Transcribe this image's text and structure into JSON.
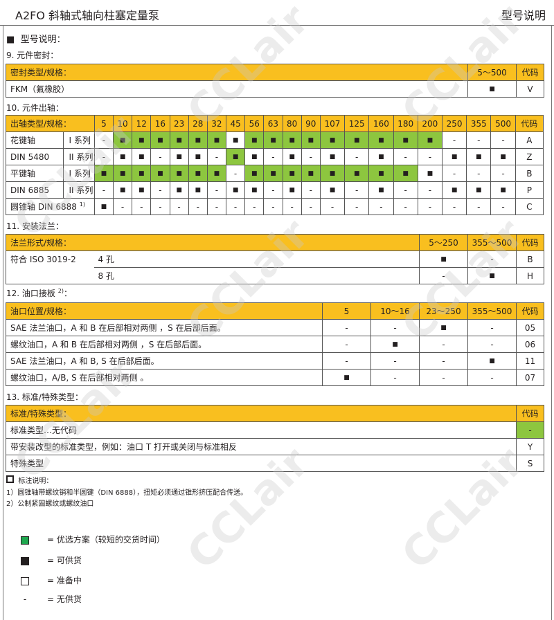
{
  "header": {
    "title": "A2FO 斜轴式轴向柱塞定量泵",
    "right": "型号说明"
  },
  "heading": "型号说明：",
  "s9": {
    "title": "9.  元件密封：",
    "cols": [
      "密封类型/规格：",
      "5～500",
      "代码"
    ],
    "rows": [
      [
        "FKM（氟橡胶）",
        "■",
        "V"
      ]
    ]
  },
  "s10": {
    "title": "10. 元件出轴：",
    "label": "出轴类型/规格：",
    "code_label": "代码",
    "sizes": [
      "5",
      "10",
      "12",
      "16",
      "23",
      "28",
      "32",
      "45",
      "56",
      "63",
      "80",
      "90",
      "107",
      "125",
      "160",
      "180",
      "200",
      "250",
      "355",
      "500"
    ],
    "rows": [
      {
        "type": "花键轴",
        "series": "I 系列",
        "code": "A",
        "values": [
          "-",
          "■",
          "■",
          "■",
          "■",
          "■",
          "■",
          "■",
          "■",
          "■",
          "■",
          "■",
          "■",
          "■",
          "■",
          "■",
          "■",
          "-",
          "-",
          "-"
        ],
        "preferred": [
          0,
          1,
          1,
          1,
          1,
          1,
          1,
          0,
          1,
          1,
          1,
          1,
          1,
          1,
          1,
          1,
          1,
          0,
          0,
          0
        ]
      },
      {
        "type": "DIN 5480",
        "series": "II 系列",
        "code": "Z",
        "values": [
          "-",
          "■",
          "■",
          "-",
          "■",
          "■",
          "-",
          "■",
          "■",
          "-",
          "■",
          "-",
          "■",
          "-",
          "■",
          "-",
          "-",
          "■",
          "■",
          "■"
        ],
        "preferred": [
          0,
          0,
          0,
          0,
          0,
          0,
          0,
          1,
          0,
          0,
          0,
          0,
          0,
          0,
          0,
          0,
          0,
          0,
          0,
          0
        ]
      },
      {
        "type": "平键轴",
        "series": "I 系列",
        "code": "B",
        "values": [
          "■",
          "■",
          "■",
          "■",
          "■",
          "■",
          "■",
          "-",
          "■",
          "■",
          "■",
          "■",
          "■",
          "■",
          "■",
          "■",
          "■",
          "-",
          "-",
          "-"
        ],
        "preferred": [
          1,
          1,
          1,
          1,
          1,
          1,
          1,
          0,
          1,
          1,
          1,
          1,
          1,
          1,
          1,
          1,
          0,
          0,
          0,
          0
        ]
      },
      {
        "type": "DIN 6885",
        "series": "II 系列",
        "code": "P",
        "values": [
          "-",
          "■",
          "■",
          "-",
          "■",
          "■",
          "-",
          "■",
          "■",
          "-",
          "■",
          "-",
          "■",
          "-",
          "■",
          "-",
          "-",
          "■",
          "■",
          "■"
        ],
        "preferred": [
          0,
          0,
          0,
          0,
          0,
          0,
          0,
          0,
          0,
          0,
          0,
          0,
          0,
          0,
          0,
          0,
          0,
          0,
          0,
          0
        ]
      },
      {
        "type": "圆锥轴  DIN 6888",
        "sup": "1)",
        "series": "",
        "code": "C",
        "values": [
          "■",
          "-",
          "-",
          "-",
          "-",
          "-",
          "-",
          "-",
          "-",
          "-",
          "-",
          "-",
          "-",
          "-",
          "-",
          "-",
          "-",
          "-",
          "-",
          "-"
        ],
        "preferred": [
          0,
          0,
          0,
          0,
          0,
          0,
          0,
          0,
          0,
          0,
          0,
          0,
          0,
          0,
          0,
          0,
          0,
          0,
          0,
          0
        ]
      }
    ]
  },
  "s11": {
    "title": "11. 安装法兰：",
    "cols": [
      "法兰形式/规格：",
      "5～250",
      "355～500",
      "代码"
    ],
    "rows": [
      [
        "符合 ISO 3019-2",
        "4 孔",
        "■",
        "-",
        "B"
      ],
      [
        "",
        "8 孔",
        "-",
        "■",
        "H"
      ]
    ]
  },
  "s12": {
    "title": "12. 油口接板",
    "sup": "2)",
    "suffix": "：",
    "cols": [
      "油口位置/规格：",
      "5",
      "10～16",
      "23～250",
      "355～500",
      "代码"
    ],
    "rows": [
      [
        "SAE 法兰油口，A 和 B 在后部相对两侧 ，S 在后部后面。",
        "-",
        "-",
        "■",
        "-",
        "05"
      ],
      [
        "螺纹油口，A 和 B 在后部相对两侧 ，S 在后部后面。",
        "-",
        "■",
        "-",
        "-",
        "06"
      ],
      [
        "SAE 法兰油口，A 和 B, S 在后部后面。",
        "-",
        "-",
        "-",
        "■",
        "11"
      ],
      [
        "螺纹油口，A/B, S 在后部相对两侧 。",
        "■",
        "-",
        "-",
        "-",
        "07"
      ]
    ]
  },
  "s13": {
    "title": "13. 标准/特殊类型：",
    "cols": [
      "标准/特殊类型：",
      "代码"
    ],
    "rows": [
      [
        "标准类型…无代码",
        "-"
      ],
      [
        "带安装改型的标准类型，例如：油口 T 打开或关闭与标准相反",
        "Y"
      ],
      [
        "特殊类型",
        "S"
      ]
    ]
  },
  "notes": {
    "title": "标注说明：",
    "n1": "1）圆锥轴带螺纹销和半圆键（DIN 6888），扭矩必须通过锥形挤压配合传送。",
    "n2": "2）公制紧固螺纹或螺纹油口"
  },
  "legend": [
    {
      "symbol": "green",
      "text": "=  优选方案（较短的交货时间）"
    },
    {
      "symbol": "black",
      "text": "=  可供货"
    },
    {
      "symbol": "white",
      "text": "=  准备中"
    },
    {
      "symbol": "-",
      "text": "=  无供货"
    }
  ],
  "colors": {
    "header": "#f9bf1f",
    "preferred": "#8dc63f",
    "preferred_legend": "#1fa84f"
  },
  "watermark": "CCLair"
}
